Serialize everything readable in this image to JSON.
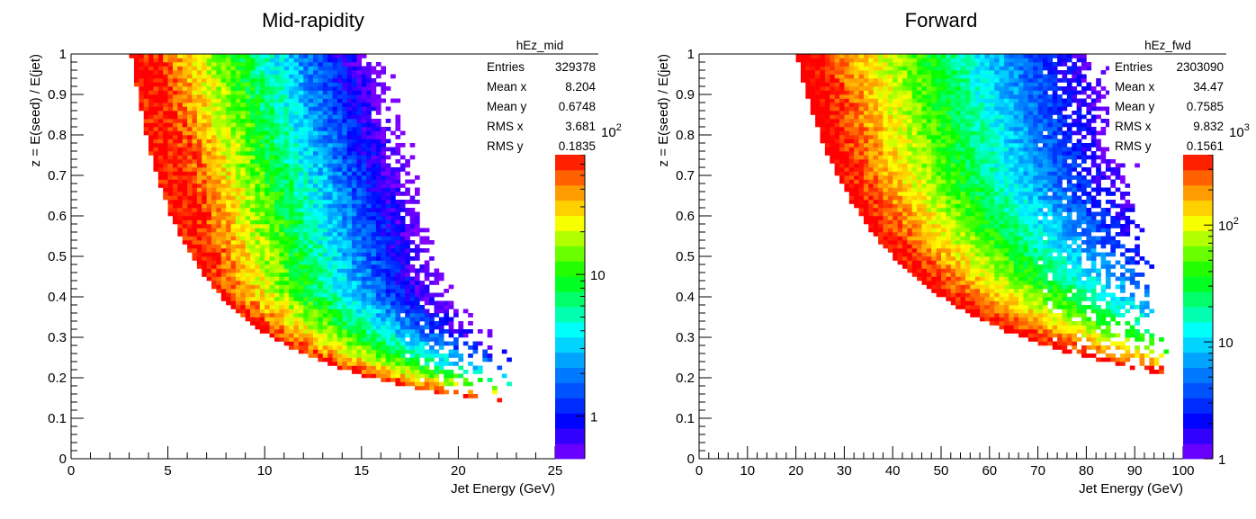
{
  "chart_data": [
    {
      "type": "heatmap",
      "title": "Mid-rapidity",
      "xlabel": "Jet Energy (GeV)",
      "ylabel": "z = E(seed) / E(jet)",
      "xlim": [
        0,
        25
      ],
      "ylim": [
        0,
        1
      ],
      "xticks": [
        "0",
        "5",
        "10",
        "15",
        "20",
        "25"
      ],
      "yticks": [
        "0",
        "0.1",
        "0.2",
        "0.3",
        "0.4",
        "0.5",
        "0.6",
        "0.7",
        "0.8",
        "0.9",
        "1"
      ],
      "colz_scale": "log",
      "colz_range": [
        0.5,
        70
      ],
      "colorbar_labels": [
        "1",
        "10"
      ],
      "colorbar_hidden_label": "10^2",
      "stats": {
        "name": "hEz_mid",
        "rows": [
          {
            "label": "Entries",
            "value": "329378"
          },
          {
            "label": "Mean x",
            "value": "8.204"
          },
          {
            "label": "Mean y",
            "value": "0.6748"
          },
          {
            "label": "RMS x",
            "value": "3.681"
          },
          {
            "label": "RMS y",
            "value": "0.1835"
          }
        ]
      },
      "model": {
        "min_energy_threshold": 3.1,
        "x_max_at_z_max": 24.0,
        "x_max_at_z_min": 22.5,
        "peak_energy_at_z1": 4.0,
        "peak_energy_at_z04": 7.5,
        "ridge_drift_per_unit_z": 1.2,
        "falloff_scale": 5.2,
        "peak_log10_counts": 1.85,
        "sparse_start_energy": 17
      }
    },
    {
      "type": "heatmap",
      "title": "Forward",
      "xlabel": "Jet Energy (GeV)",
      "ylabel": "z = E(seed) / E(jet)",
      "xlim": [
        0,
        100
      ],
      "ylim": [
        0,
        1
      ],
      "xticks": [
        "0",
        "10",
        "20",
        "30",
        "40",
        "50",
        "60",
        "70",
        "80",
        "90",
        "100"
      ],
      "yticks": [
        "0",
        "0.1",
        "0.2",
        "0.3",
        "0.4",
        "0.5",
        "0.6",
        "0.7",
        "0.8",
        "0.9",
        "1"
      ],
      "colz_scale": "log",
      "colz_range": [
        1,
        400
      ],
      "colorbar_labels": [
        "1",
        "10",
        "10^2"
      ],
      "colorbar_hidden_label": "10^3",
      "stats": {
        "name": "hEz_fwd",
        "rows": [
          {
            "label": "Entries",
            "value": "2303090"
          },
          {
            "label": "Mean x",
            "value": "34.47"
          },
          {
            "label": "Mean y",
            "value": "0.7585"
          },
          {
            "label": "RMS x",
            "value": "9.832"
          },
          {
            "label": "RMS y",
            "value": "0.1561"
          }
        ]
      },
      "model": {
        "min_energy_threshold": 20.0,
        "x_max_at_z_max": 85.0,
        "x_max_at_z_min": 97.0,
        "peak_energy_at_z1": 22.0,
        "peak_energy_at_z04": 35.0,
        "ridge_drift_per_unit_z": 3.0,
        "falloff_scale": 22.0,
        "peak_log10_counts": 2.7,
        "sparse_start_energy": 70
      }
    }
  ]
}
